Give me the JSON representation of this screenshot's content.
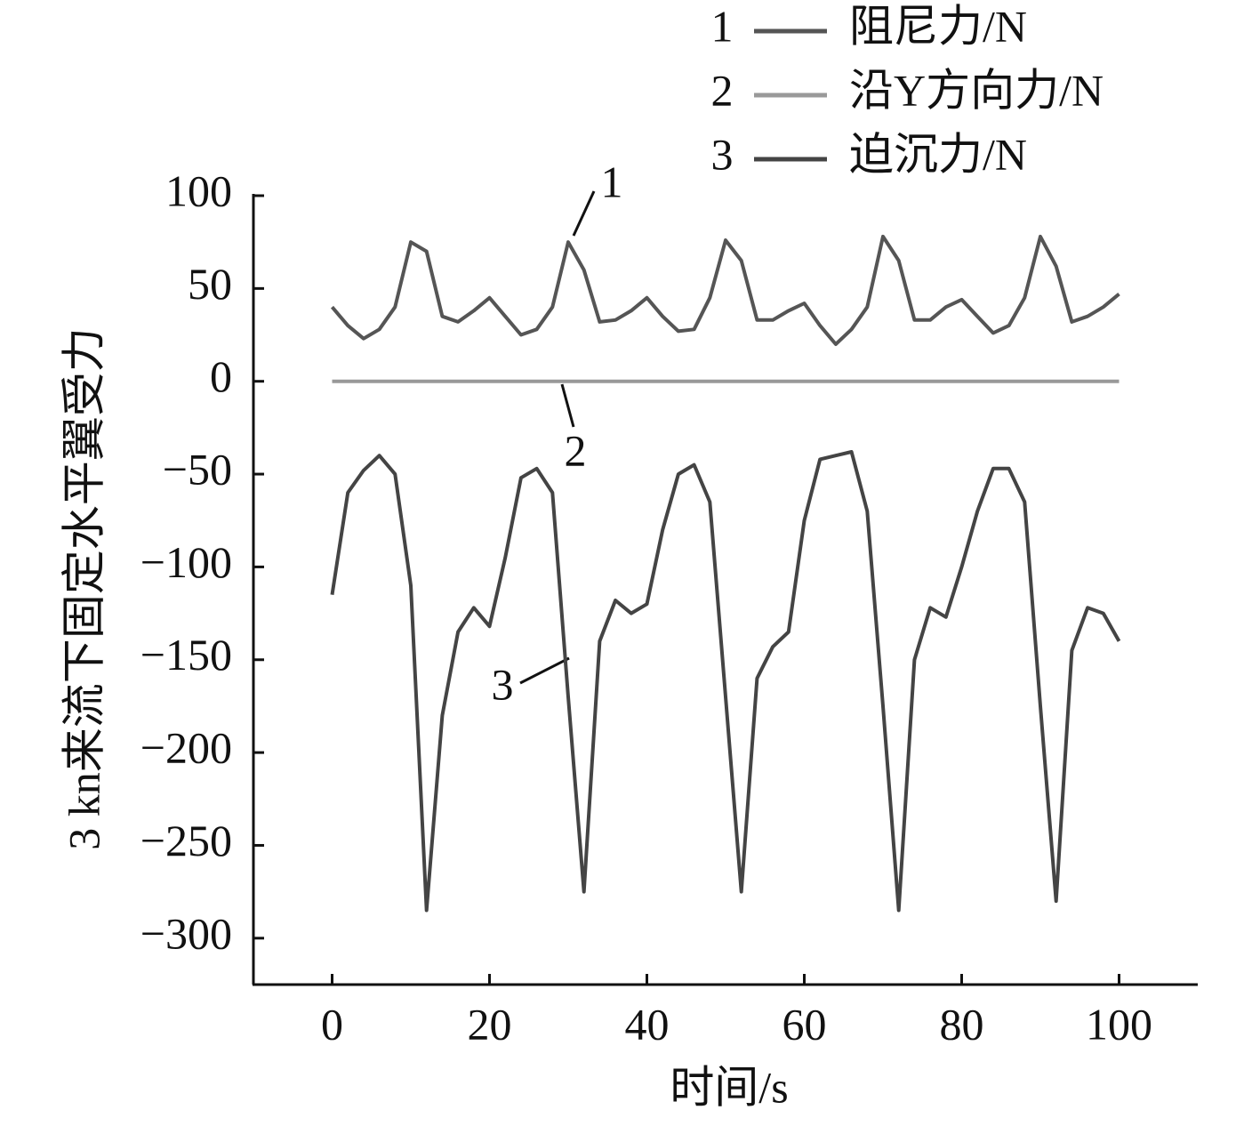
{
  "chart_data": {
    "type": "line",
    "xlabel": "时间/s",
    "ylabel": "3 kn来流下固定水平翼受力",
    "x": [
      0,
      2,
      4,
      6,
      8,
      10,
      12,
      14,
      16,
      18,
      20,
      22,
      24,
      26,
      28,
      30,
      32,
      34,
      36,
      38,
      40,
      42,
      44,
      46,
      48,
      50,
      52,
      54,
      56,
      58,
      60,
      62,
      64,
      66,
      68,
      70,
      72,
      74,
      76,
      78,
      80,
      82,
      84,
      86,
      88,
      90,
      92,
      94,
      96,
      98,
      100
    ],
    "series": [
      {
        "name": "阻尼力/N",
        "label": "1",
        "color": "#555555",
        "values": [
          40,
          30,
          23,
          28,
          40,
          75,
          70,
          35,
          32,
          38,
          45,
          35,
          25,
          28,
          40,
          75,
          60,
          32,
          33,
          38,
          45,
          35,
          27,
          28,
          45,
          76,
          65,
          33,
          33,
          38,
          42,
          30,
          20,
          28,
          40,
          78,
          65,
          33,
          33,
          40,
          44,
          35,
          26,
          30,
          45,
          78,
          62,
          32,
          35,
          40,
          47
        ]
      },
      {
        "name": "沿Y方向力/N",
        "label": "2",
        "color": "#999999",
        "values": [
          0,
          0,
          0,
          0,
          0,
          0,
          0,
          0,
          0,
          0,
          0,
          0,
          0,
          0,
          0,
          0,
          0,
          0,
          0,
          0,
          0,
          0,
          0,
          0,
          0,
          0,
          0,
          0,
          0,
          0,
          0,
          0,
          0,
          0,
          0,
          0,
          0,
          0,
          0,
          0,
          0,
          0,
          0,
          0,
          0,
          0,
          0,
          0,
          0,
          0,
          0
        ]
      },
      {
        "name": "迫沉力/N",
        "label": "3",
        "color": "#444444",
        "values": [
          -115,
          -60,
          -48,
          -40,
          -50,
          -110,
          -285,
          -180,
          -135,
          -122,
          -132,
          -95,
          -52,
          -47,
          -60,
          -170,
          -275,
          -140,
          -118,
          -125,
          -120,
          -80,
          -50,
          -45,
          -65,
          -170,
          -275,
          -160,
          -143,
          -135,
          -75,
          -42,
          -40,
          -38,
          -70,
          -175,
          -285,
          -150,
          -122,
          -127,
          -100,
          -70,
          -47,
          -47,
          -65,
          -175,
          -280,
          -145,
          -122,
          -125,
          -140
        ]
      }
    ],
    "xlim": [
      -10,
      110
    ],
    "xticks": [
      0,
      20,
      40,
      60,
      80,
      100
    ],
    "ylim": [
      -325,
      100
    ],
    "yticks": [
      {
        "value": -300,
        "label": "−300"
      },
      {
        "value": -250,
        "label": "−250"
      },
      {
        "value": -200,
        "label": "−200"
      },
      {
        "value": -150,
        "label": "−150"
      },
      {
        "value": -100,
        "label": "−100"
      },
      {
        "value": -50,
        "label": "−50"
      },
      0,
      50,
      100
    ],
    "grid": false
  }
}
